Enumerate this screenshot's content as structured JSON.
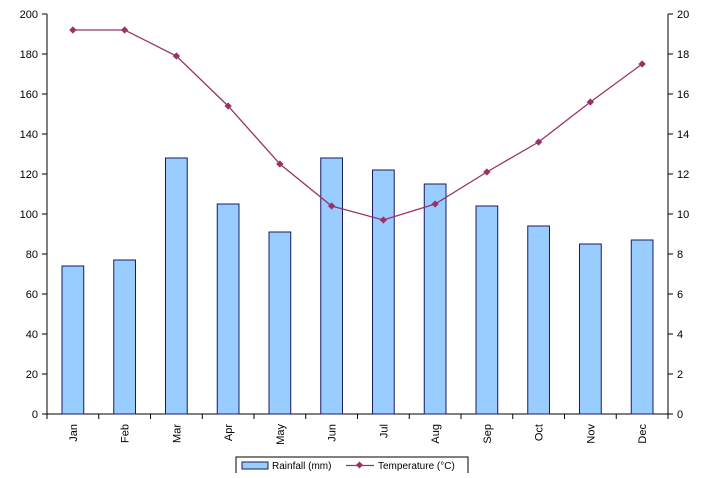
{
  "chart_data": {
    "type": "bar",
    "categories": [
      "Jan",
      "Feb",
      "Mar",
      "Apr",
      "May",
      "Jun",
      "Jul",
      "Aug",
      "Sep",
      "Oct",
      "Nov",
      "Dec"
    ],
    "series": [
      {
        "name": "Rainfall (mm)",
        "type": "bar",
        "axis": "left",
        "values": [
          74,
          77,
          128,
          105,
          91,
          128,
          122,
          115,
          104,
          94,
          85,
          87
        ]
      },
      {
        "name": "Temperature (°C)",
        "type": "line",
        "axis": "right",
        "values": [
          19.2,
          19.2,
          17.9,
          15.4,
          12.5,
          10.4,
          9.7,
          10.5,
          12.1,
          13.6,
          15.6,
          17.5
        ]
      }
    ],
    "ylim": [
      0,
      200
    ],
    "y_ticks": [
      "0",
      "20",
      "40",
      "60",
      "80",
      "100",
      "120",
      "140",
      "160",
      "180",
      "200"
    ],
    "y2lim": [
      0,
      20
    ],
    "y2_ticks": [
      "0",
      "2",
      "4",
      "6",
      "8",
      "10",
      "12",
      "14",
      "16",
      "18",
      "20"
    ],
    "colors": {
      "bar_fill": "#99ccff",
      "bar_stroke": "#1a1a66",
      "line": "#993366",
      "axis": "#000000"
    },
    "grid": false,
    "legend_position": "bottom-center"
  }
}
